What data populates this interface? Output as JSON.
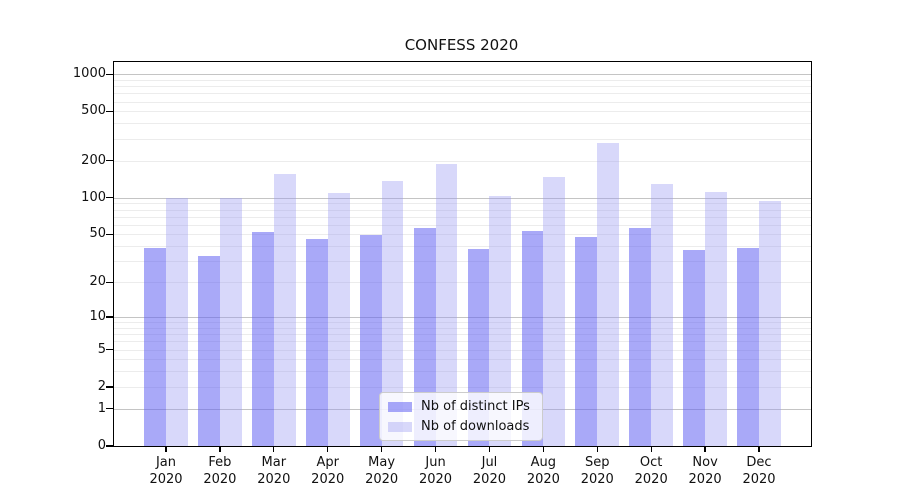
{
  "figure": {
    "background": "#ffffff"
  },
  "chart_data": {
    "type": "bar",
    "title": "CONFESS 2020",
    "x_months": [
      "Jan",
      "Feb",
      "Mar",
      "Apr",
      "May",
      "Jun",
      "Jul",
      "Aug",
      "Sep",
      "Oct",
      "Nov",
      "Dec"
    ],
    "x_year_line": "2020",
    "series": [
      {
        "name": "Nb of distinct IPs",
        "color_hex": "#a9a9f8",
        "fill": "rgba(98,98,242,0.55)",
        "values": [
          39,
          33,
          52,
          46,
          49,
          56,
          38,
          53,
          48,
          57,
          37,
          39
        ]
      },
      {
        "name": "Nb of downloads",
        "color_hex": "#d8d8fa",
        "fill": "rgba(150,150,242,0.37)",
        "values": [
          100,
          100,
          155,
          109,
          137,
          187,
          103,
          146,
          276,
          129,
          112,
          94
        ]
      }
    ],
    "yscale": "log1p",
    "ylim": [
      0,
      1258
    ],
    "yticks": [
      {
        "v": 0,
        "label": "0"
      },
      {
        "v": 1,
        "label": "1"
      },
      {
        "v": 2,
        "label": "2"
      },
      {
        "v": 5,
        "label": "5"
      },
      {
        "v": 10,
        "label": "10"
      },
      {
        "v": 20,
        "label": "20"
      },
      {
        "v": 50,
        "label": "50"
      },
      {
        "v": 100,
        "label": "100"
      },
      {
        "v": 200,
        "label": "200"
      },
      {
        "v": 500,
        "label": "500"
      },
      {
        "v": 1000,
        "label": "1000"
      }
    ],
    "grid_minor_values": [
      2,
      3,
      4,
      5,
      6,
      7,
      8,
      9,
      20,
      30,
      40,
      50,
      60,
      70,
      80,
      90,
      200,
      300,
      400,
      500,
      600,
      700,
      800,
      900
    ],
    "grid_major_values": [
      1,
      10,
      100,
      1000
    ],
    "legend": {
      "position": "lower center"
    }
  },
  "colors": {
    "grid_minor": "#ececec",
    "grid_major": "#c4c4c4",
    "axis": "#000000",
    "text": "#111111"
  }
}
